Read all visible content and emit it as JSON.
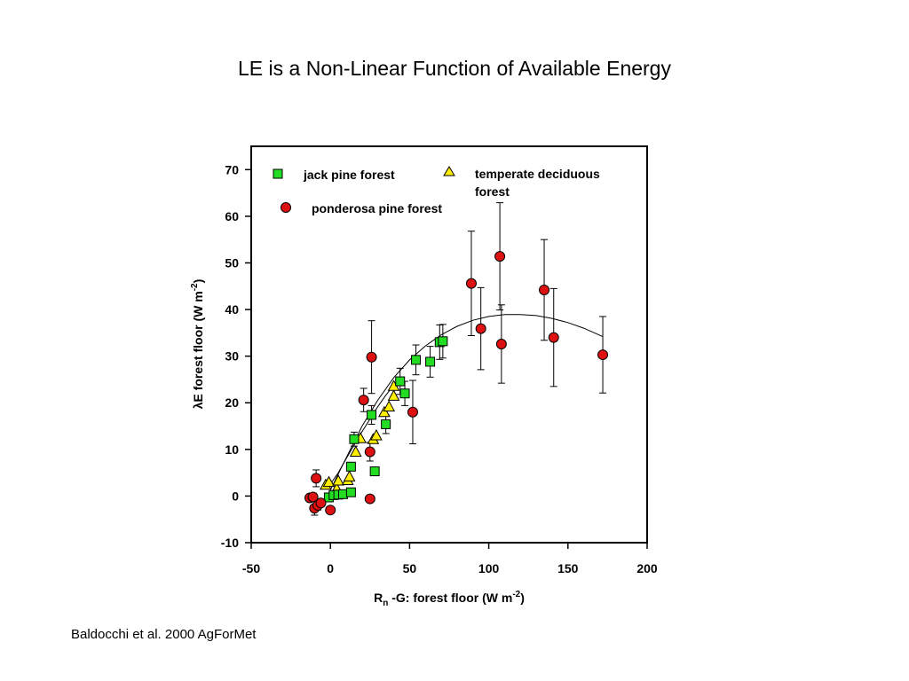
{
  "slide": {
    "title": "LE is a Non-Linear Function of  Available Energy",
    "citation": "Baldocchi et al. 2000 AgForMet"
  },
  "colors": {
    "jack_pine": "#22dd22",
    "deciduous": "#ffee00",
    "ponderosa": "#dd1111",
    "axis": "#000000"
  },
  "chart_data": {
    "type": "scatter",
    "title": "",
    "xlabel": {
      "main": "R",
      "sub": "n",
      "rest": " -G: forest floor (W m",
      "sup": "-2",
      "end": ")"
    },
    "ylabel": {
      "main": "λE forest floor (W m",
      "sup": "-2",
      "end": ")"
    },
    "xlim": [
      -50,
      200
    ],
    "ylim": [
      -10,
      75
    ],
    "xticks": [
      -50,
      0,
      50,
      100,
      150,
      200
    ],
    "yticks": [
      -10,
      0,
      10,
      20,
      30,
      40,
      50,
      60,
      70
    ],
    "grid": false,
    "legend_position": "top-left",
    "series": [
      {
        "name": "jack pine forest",
        "marker": "square",
        "color": "#22dd22",
        "points": [
          {
            "x": -1,
            "y": -0.3,
            "err": 0.6
          },
          {
            "x": 2,
            "y": 0.2,
            "err": 0.5
          },
          {
            "x": 5,
            "y": 0.3,
            "err": 0.6
          },
          {
            "x": 8,
            "y": 0.4,
            "err": 0.6
          },
          {
            "x": 13,
            "y": 0.8,
            "err": 0.8
          },
          {
            "x": 13,
            "y": 6.3,
            "err": 0.8
          },
          {
            "x": 15,
            "y": 12.2,
            "err": 1.5
          },
          {
            "x": 26,
            "y": 17.4,
            "err": 2.0
          },
          {
            "x": 28,
            "y": 5.3,
            "err": 0.5
          },
          {
            "x": 35,
            "y": 15.4,
            "err": 2.0
          },
          {
            "x": 44,
            "y": 24.6,
            "err": 2.8
          },
          {
            "x": 47,
            "y": 22.0,
            "err": 2.6
          },
          {
            "x": 54,
            "y": 29.2,
            "err": 3.2
          },
          {
            "x": 63,
            "y": 28.8,
            "err": 3.3
          },
          {
            "x": 69,
            "y": 33.0,
            "err": 3.7
          },
          {
            "x": 71,
            "y": 33.2,
            "err": 3.6
          }
        ]
      },
      {
        "name": "temperate deciduous forest",
        "marker": "triangle",
        "color": "#ffee00",
        "points": [
          {
            "x": -3,
            "y": 2.4
          },
          {
            "x": -1,
            "y": 3.0
          },
          {
            "x": 4,
            "y": 1.6
          },
          {
            "x": 5,
            "y": 3.3
          },
          {
            "x": 11,
            "y": 3.4
          },
          {
            "x": 12,
            "y": 4.2
          },
          {
            "x": 16,
            "y": 9.5
          },
          {
            "x": 19,
            "y": 12.4
          },
          {
            "x": 27,
            "y": 12.2
          },
          {
            "x": 29,
            "y": 13.0
          },
          {
            "x": 34,
            "y": 18.0
          },
          {
            "x": 37,
            "y": 19.2
          },
          {
            "x": 40,
            "y": 21.5
          },
          {
            "x": 40,
            "y": 23.6
          }
        ]
      },
      {
        "name": "ponderosa pine forest",
        "marker": "circle",
        "color": "#dd1111",
        "points": [
          {
            "x": -13,
            "y": -0.4,
            "err": 0.8
          },
          {
            "x": -11,
            "y": -0.2,
            "err": 0.8
          },
          {
            "x": -10,
            "y": -2.6,
            "err": 1.5
          },
          {
            "x": -9,
            "y": 3.8,
            "err": 1.8
          },
          {
            "x": -8,
            "y": -2.0,
            "err": 1.0
          },
          {
            "x": -6,
            "y": -1.5,
            "err": 0.8
          },
          {
            "x": 0,
            "y": -3.0,
            "err": 0.5
          },
          {
            "x": 21,
            "y": 20.6,
            "err": 2.5
          },
          {
            "x": 25,
            "y": 9.5,
            "err": 2.0
          },
          {
            "x": 25,
            "y": -0.6,
            "err": 0.6
          },
          {
            "x": 26,
            "y": 29.8,
            "err": 7.8
          },
          {
            "x": 52,
            "y": 18.0,
            "err": 6.8
          },
          {
            "x": 89,
            "y": 45.6,
            "err": 11.2
          },
          {
            "x": 95,
            "y": 35.9,
            "err": 8.8
          },
          {
            "x": 107,
            "y": 51.4,
            "err": 11.5
          },
          {
            "x": 108,
            "y": 32.6,
            "err": 8.4
          },
          {
            "x": 135,
            "y": 44.2,
            "err": 10.8
          },
          {
            "x": 141,
            "y": 34.0,
            "err": 10.5
          },
          {
            "x": 172,
            "y": 30.3,
            "err": 8.2
          }
        ]
      }
    ],
    "fit_curves": [
      {
        "name": "",
        "x": [
          -1,
          10,
          20,
          30,
          40,
          50,
          60,
          70,
          80,
          90,
          100,
          110,
          120,
          130,
          140,
          150,
          160,
          172
        ],
        "y": [
          0.6,
          8.2,
          15.0,
          20.6,
          25.4,
          29.2,
          32.2,
          34.6,
          36.4,
          37.7,
          38.5,
          38.9,
          38.9,
          38.7,
          38.1,
          37.2,
          36.0,
          34.2
        ]
      },
      {
        "name": "",
        "x": [
          -2,
          5,
          10,
          15,
          20,
          25,
          30,
          35,
          40
        ],
        "y": [
          1.6,
          5.0,
          8.0,
          11.0,
          13.8,
          16.5,
          19.2,
          21.6,
          23.8
        ]
      }
    ]
  }
}
